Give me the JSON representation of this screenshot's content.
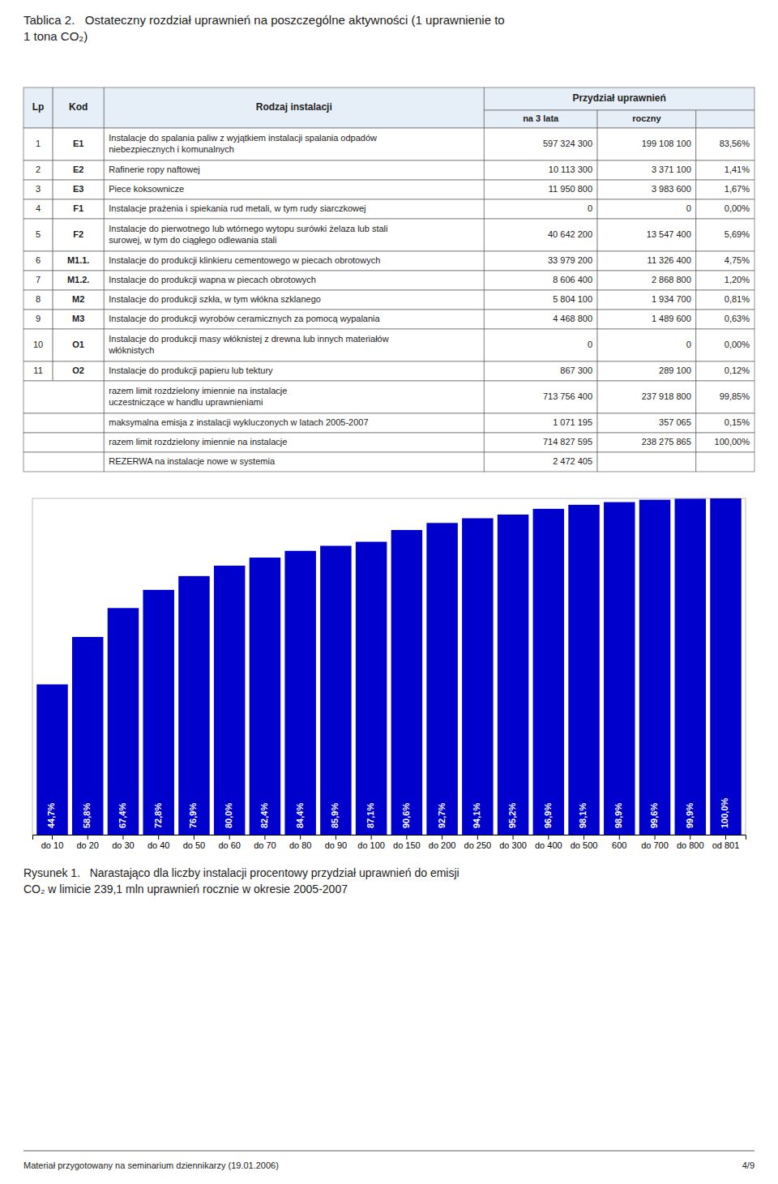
{
  "chart_data": [
    {
      "type": "table",
      "title": "Tablica 2.   Ostateczny rozdział uprawnień na poszczególne aktywności (1 uprawnienie to\n1 tona CO₂)",
      "column_group": "Przydział uprawnień",
      "columns": [
        "Lp",
        "Kod",
        "Rodzaj instalacji",
        "na 3 lata",
        "roczny",
        null
      ],
      "rows": [
        [
          "1",
          "E1",
          "Instalacje do spalania paliw z wyjątkiem instalacji spalania odpadów\nniebezpiecznych i komunalnych",
          "597 324 300",
          "199 108 100",
          "83,56%"
        ],
        [
          "2",
          "E2",
          "Rafinerie ropy naftowej",
          "10 113 300",
          "3 371 100",
          "1,41%"
        ],
        [
          "3",
          "E3",
          "Piece koksownicze",
          "11 950 800",
          "3 983 600",
          "1,67%"
        ],
        [
          "4",
          "F1",
          "Instalacje prażenia i spiekania rud metali, w tym rudy siarczkowej",
          "0",
          "0",
          "0,00%"
        ],
        [
          "5",
          "F2",
          "Instalacje do pierwotnego lub wtórnego wytopu surówki żelaza lub stali\nsurowej, w tym do ciągłego odlewania stali",
          "40 642 200",
          "13 547 400",
          "5,69%"
        ],
        [
          "6",
          "M1.1.",
          "Instalacje do produkcji klinkieru cementowego w piecach obrotowych",
          "33 979 200",
          "11 326 400",
          "4,75%"
        ],
        [
          "7",
          "M1.2.",
          "Instalacje do produkcji wapna w piecach obrotowych",
          "8 606 400",
          "2 868 800",
          "1,20%"
        ],
        [
          "8",
          "M2",
          "Instalacje do produkcji szkła, w tym włókna szklanego",
          "5 804 100",
          "1 934 700",
          "0,81%"
        ],
        [
          "9",
          "M3",
          "Instalacje do produkcji wyrobów ceramicznych za pomocą wypalania",
          "4 468 800",
          "1 489 600",
          "0,63%"
        ],
        [
          "10",
          "O1",
          "Instalacje do produkcji masy włóknistej z drewna lub innych materiałów\nwłóknistych",
          "0",
          "0",
          "0,00%"
        ],
        [
          "11",
          "O2",
          "Instalacje do produkcji papieru lub tektury",
          "867 300",
          "289 100",
          "0,12%"
        ],
        [
          null,
          null,
          "razem limit rozdzielony imiennie na instalacje\nuczestniczące w handlu uprawnieniami",
          "713 756 400",
          "237 918 800",
          "99,85%"
        ],
        [
          null,
          null,
          "maksymalna emisja z instalacji wykluczonych w latach 2005-2007",
          "1 071 195",
          "357 065",
          "0,15%"
        ],
        [
          null,
          null,
          "razem limit rozdzielony imiennie na instalacje",
          "714 827 595",
          "238 275 865",
          "100,00%"
        ],
        [
          null,
          null,
          "REZERWA na instalacje nowe w systemia",
          "2 472 405",
          null,
          null
        ]
      ]
    },
    {
      "type": "bar",
      "title": "Rysunek 1.   Narastająco dla liczby instalacji procentowy przydział uprawnień do emisji\nCO₂ w limicie 239,1 mln uprawnień rocznie w okresie 2005-2007",
      "categories": [
        "do 10",
        "do 20",
        "do 30",
        "do 40",
        "do 50",
        "do 60",
        "do 70",
        "do 80",
        "do 90",
        "do 100",
        "do 150",
        "do 200",
        "do 250",
        "do 300",
        "do 400",
        "do 500",
        "600",
        "do 700",
        "do 800",
        "od 801"
      ],
      "values": [
        44.7,
        58.8,
        67.4,
        72.8,
        76.9,
        80.0,
        82.4,
        84.4,
        85.9,
        87.1,
        90.6,
        92.7,
        94.1,
        95.2,
        96.9,
        98.1,
        98.9,
        99.6,
        99.9,
        100.0
      ],
      "value_labels": [
        "44,7%",
        "58,8%",
        "67,4%",
        "72,8%",
        "76,9%",
        "80,0%",
        "82,4%",
        "84,4%",
        "85,9%",
        "87,1%",
        "90,6%",
        "92,7%",
        "94,1%",
        "95,2%",
        "96,9%",
        "98,1%",
        "98,9%",
        "99,6%",
        "99,9%",
        "100,0%"
      ],
      "data_labels": true,
      "color": "#0000CC",
      "ylim": [
        0,
        100
      ],
      "grid": false,
      "tick_labels": "x"
    }
  ],
  "footer": [
    "Materiał przygotowany na seminarium dziennikarzy (19.01.2006)",
    "4/9"
  ]
}
